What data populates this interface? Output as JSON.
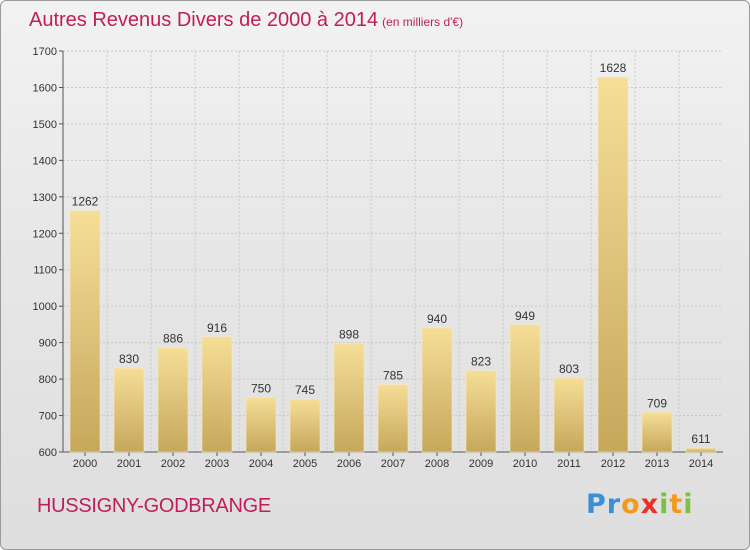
{
  "header": {
    "title": "Autres Revenus Divers de 2000 à 2014",
    "subtitle": "(en milliers d'€)"
  },
  "footer": {
    "city": "HUSSIGNY-GODBRANGE",
    "logo_letters": [
      {
        "char": "P",
        "color": "#3a8fd6"
      },
      {
        "char": "r",
        "color": "#3a8fd6"
      },
      {
        "char": "o",
        "color": "#f29a1f"
      },
      {
        "char": "x",
        "color": "#e9302a"
      },
      {
        "char": "i",
        "color": "#7cc242"
      },
      {
        "char": "t",
        "color": "#f29a1f"
      },
      {
        "char": "i",
        "color": "#7cc242"
      }
    ]
  },
  "colors": {
    "title": "#bf1e5a",
    "bar_light": "#f5dc95",
    "bar_dark": "#c9ab60",
    "grid": "#c6c6c6",
    "axis": "#555555"
  },
  "chart_data": {
    "type": "bar",
    "title": "Autres Revenus Divers de 2000 à 2014",
    "subtitle": "(en milliers d'€)",
    "categories": [
      "2000",
      "2001",
      "2002",
      "2003",
      "2004",
      "2005",
      "2006",
      "2007",
      "2008",
      "2009",
      "2010",
      "2011",
      "2012",
      "2013",
      "2014"
    ],
    "values": [
      1262,
      830,
      886,
      916,
      750,
      745,
      898,
      785,
      940,
      823,
      949,
      803,
      1628,
      709,
      611
    ],
    "ylim": [
      600,
      1700
    ],
    "yticks": [
      600,
      700,
      800,
      900,
      1000,
      1100,
      1200,
      1300,
      1400,
      1500,
      1600,
      1700
    ],
    "grid": true,
    "data_labels": true
  }
}
